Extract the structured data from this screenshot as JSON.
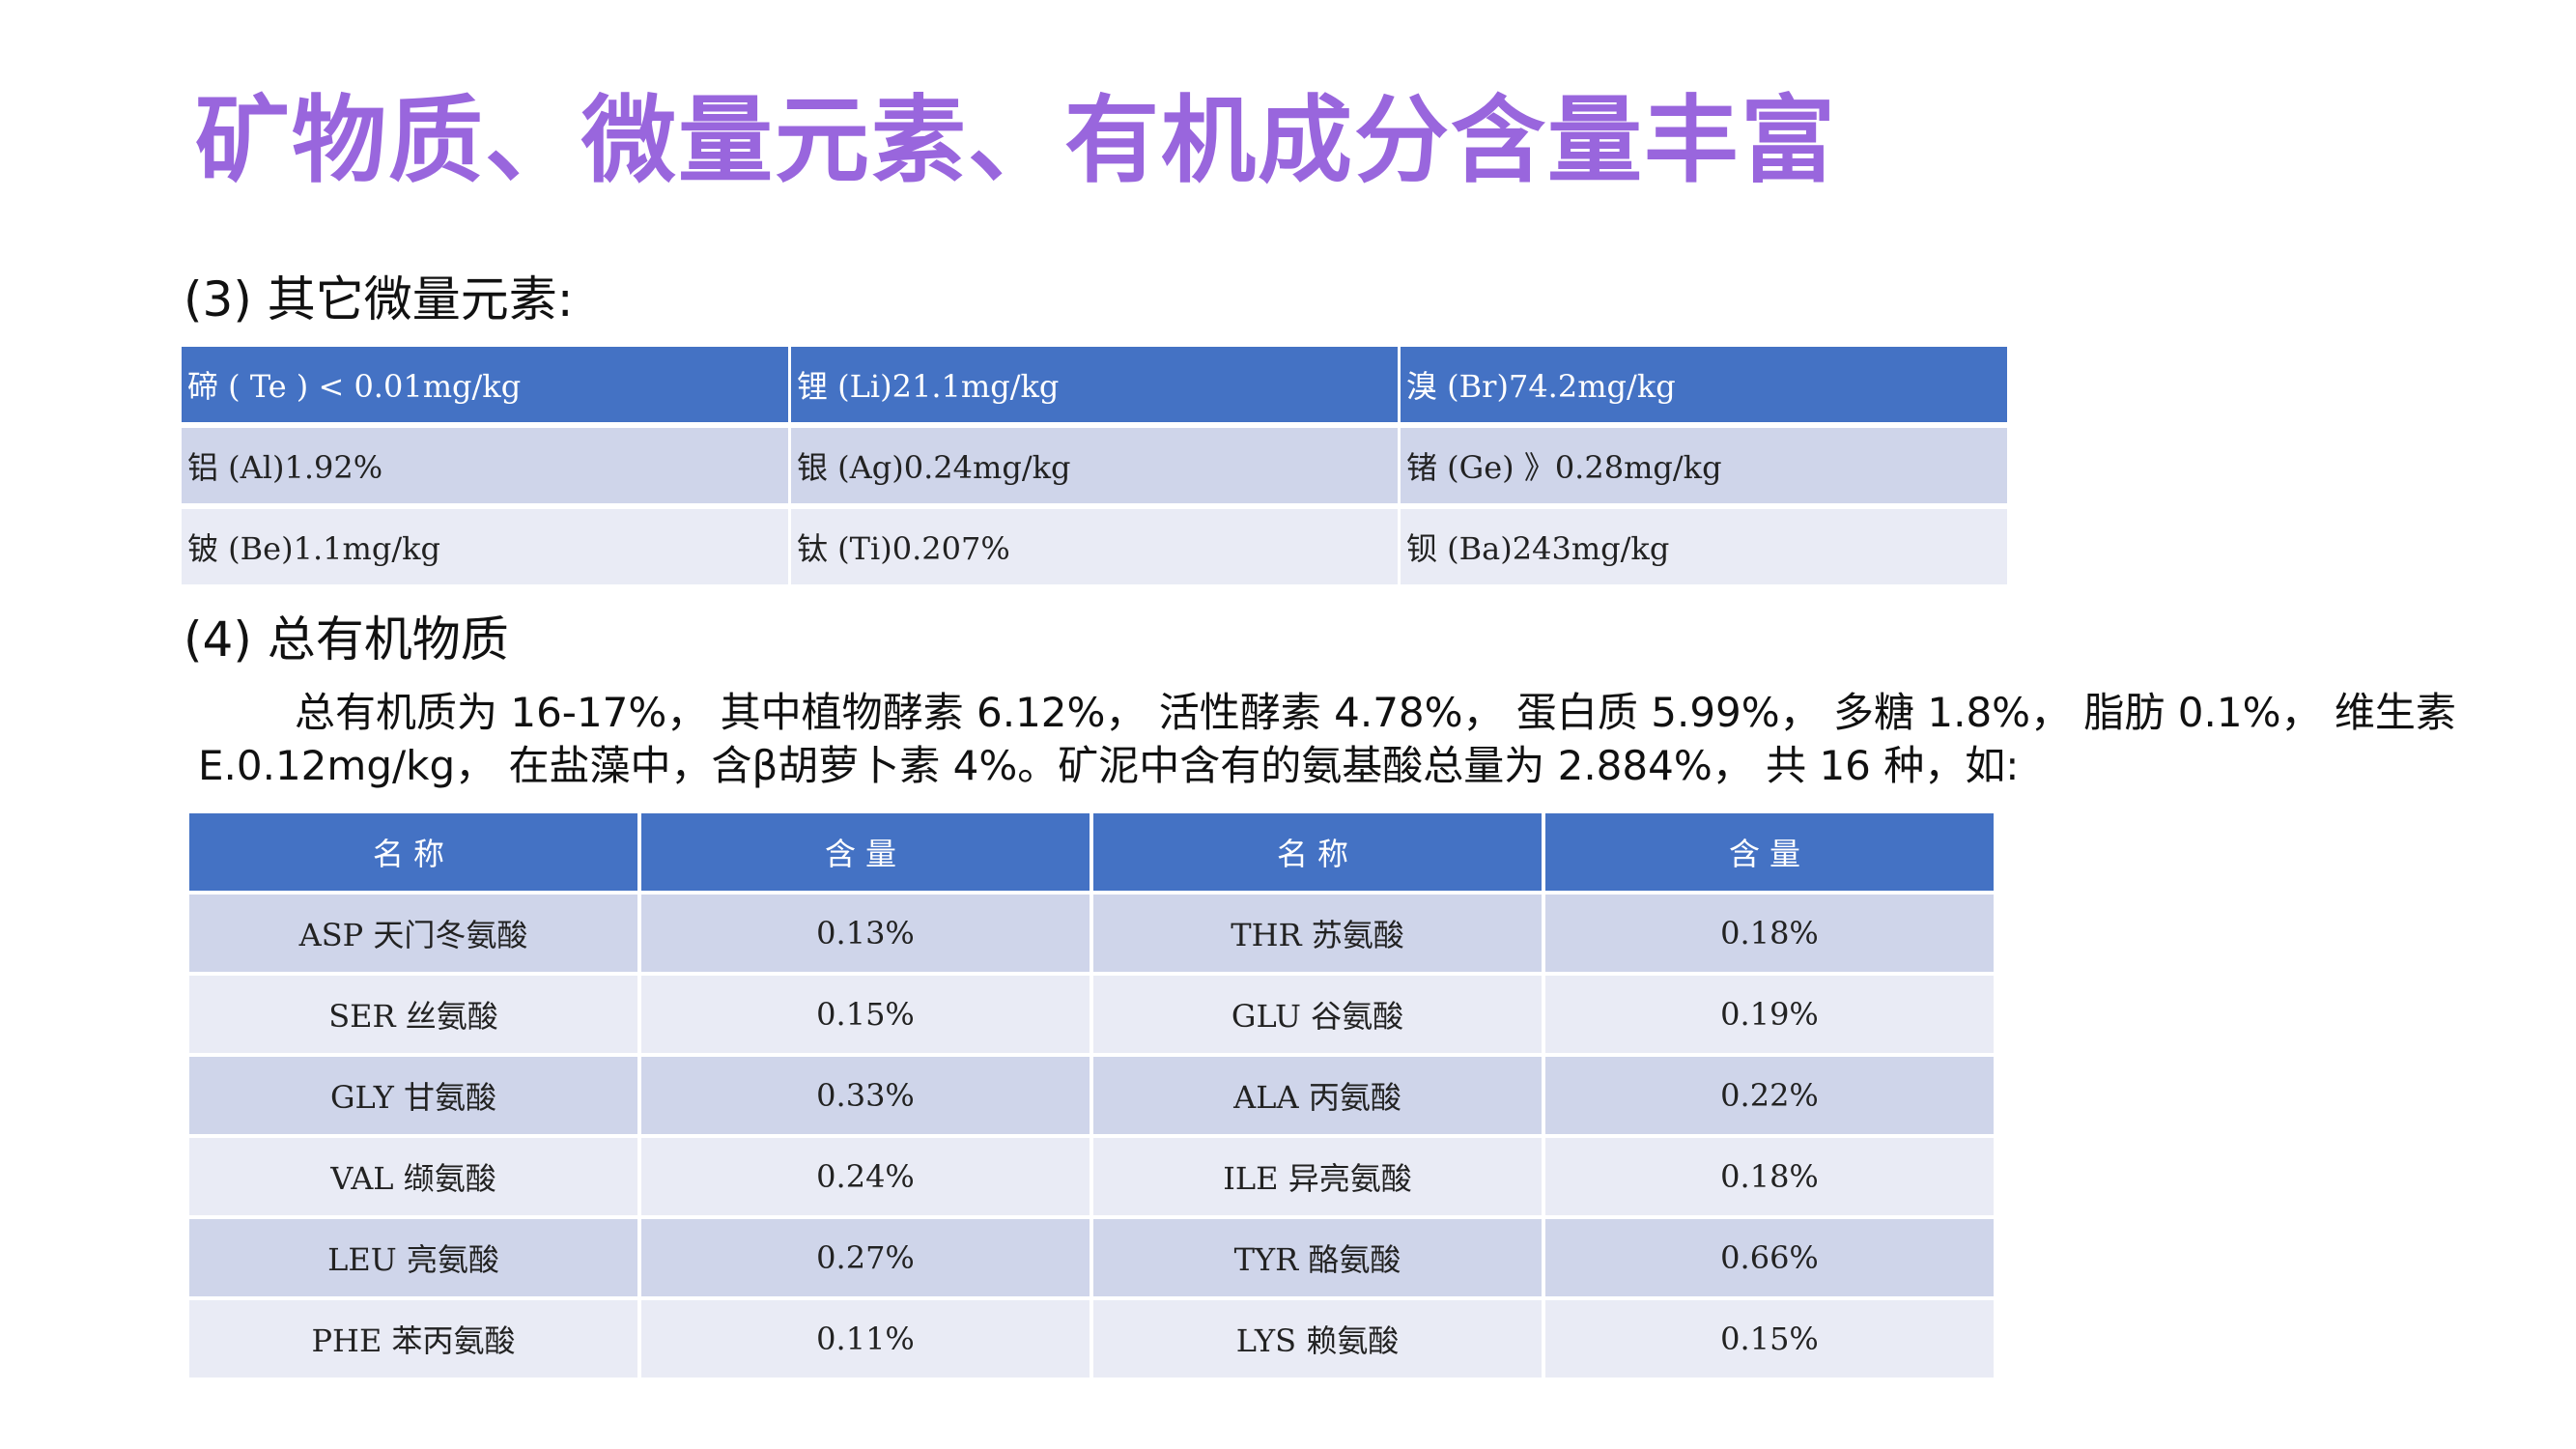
{
  "title": "矿物质、微量元素、有机成分含量丰富",
  "section3": {
    "heading": "(3) 其它微量元素:",
    "rows": [
      [
        "碲 ( Te ) < 0.01mg/kg",
        "锂 (Li)21.1mg/kg",
        "溴 (Br)74.2mg/kg"
      ],
      [
        "铝 (Al)1.92%",
        "银 (Ag)0.24mg/kg",
        "锗 (Ge) 》0.28mg/kg"
      ],
      [
        "铍 (Be)1.1mg/kg",
        "钛 (Ti)0.207%",
        "钡 (Ba)243mg/kg"
      ]
    ]
  },
  "section4": {
    "heading": "(4) 总有机物质",
    "paragraph_line1": "总有机质为 16-17%， 其中植物酵素 6.12%， 活性酵素 4.78%， 蛋白质 5.99%， 多糖 1.8%， 脂肪 0.1%， 维生素",
    "paragraph_line2": "E.0.12mg/kg， 在盐藻中，含β胡萝卜素 4%。矿泥中含有的氨基酸总量为 2.884%， 共 16 种，如:"
  },
  "amino_table": {
    "headers": [
      "名称",
      "含量",
      "名称",
      "含量"
    ],
    "rows": [
      [
        "ASP 天门冬氨酸",
        "0.13%",
        "THR 苏氨酸",
        "0.18%"
      ],
      [
        "SER 丝氨酸",
        "0.15%",
        "GLU 谷氨酸",
        "0.19%"
      ],
      [
        "GLY 甘氨酸",
        "0.33%",
        "ALA 丙氨酸",
        "0.22%"
      ],
      [
        "VAL 缬氨酸",
        "0.24%",
        "ILE 异亮氨酸",
        "0.18%"
      ],
      [
        "LEU 亮氨酸",
        "0.27%",
        "TYR 酪氨酸",
        "0.66%"
      ],
      [
        "PHE 苯丙氨酸",
        "0.11%",
        "LYS 赖氨酸",
        "0.15%"
      ]
    ]
  },
  "colors": {
    "title": "#9966dd",
    "header_fill": "#4472c4",
    "band_dark": "#cfd5ea",
    "band_light": "#e9ebf5"
  }
}
